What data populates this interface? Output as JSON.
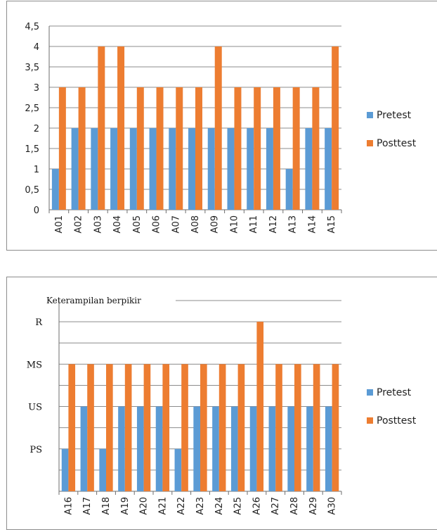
{
  "colors": {
    "pretest": "#5B9BD5",
    "posttest": "#ED7D31",
    "grid": "#8c8c8c",
    "border": "#8c8c8c"
  },
  "chart_data": [
    {
      "type": "bar",
      "categories": [
        "A01",
        "A02",
        "A03",
        "A04",
        "A05",
        "A06",
        "A07",
        "A08",
        "A09",
        "A10",
        "A11",
        "A12",
        "A13",
        "A14",
        "A15"
      ],
      "series": [
        {
          "name": "Pretest",
          "values": [
            1,
            2,
            2,
            2,
            2,
            2,
            2,
            2,
            2,
            2,
            2,
            2,
            1,
            2,
            2
          ]
        },
        {
          "name": "Posttest",
          "values": [
            3,
            3,
            4,
            4,
            3,
            3,
            3,
            3,
            4,
            3,
            3,
            3,
            3,
            3,
            4
          ]
        }
      ],
      "ylim": [
        0,
        4.5
      ],
      "yticks": [
        "0",
        "0,5",
        "1",
        "1,5",
        "2",
        "2,5",
        "3",
        "3,5",
        "4",
        "4,5"
      ],
      "grid": true,
      "legend": "right"
    },
    {
      "type": "bar",
      "title": "Keterampilan berpikir",
      "categories": [
        "A16",
        "A17",
        "A18",
        "A19",
        "A20",
        "A21",
        "A22",
        "A23",
        "A24",
        "A25",
        "A26",
        "A27",
        "A28",
        "A29",
        "A30"
      ],
      "series": [
        {
          "name": "Pretest",
          "values": [
            1,
            2,
            1,
            2,
            2,
            2,
            1,
            2,
            2,
            2,
            2,
            2,
            2,
            2,
            2
          ]
        },
        {
          "name": "Posttest",
          "values": [
            3,
            3,
            3,
            3,
            3,
            3,
            3,
            3,
            3,
            3,
            4,
            3,
            3,
            3,
            3
          ]
        }
      ],
      "ylim": [
        0,
        4.5
      ],
      "ytick_labels": {
        "R": 4,
        "MS": 3,
        "US": 2,
        "PS": 1
      },
      "grid": true,
      "legend": "right"
    }
  ]
}
